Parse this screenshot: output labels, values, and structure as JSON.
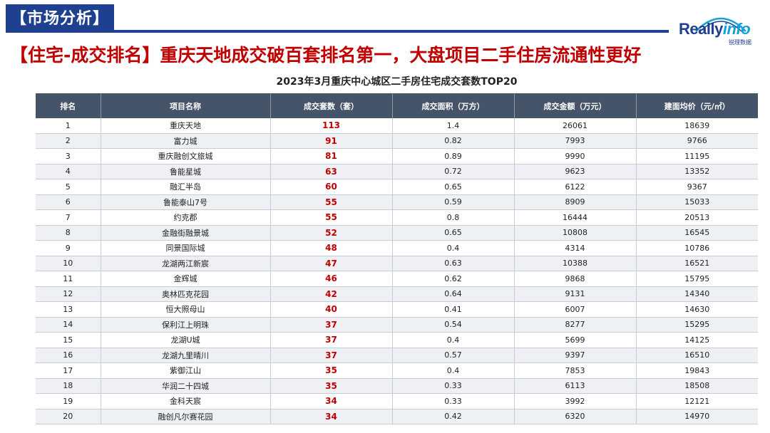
{
  "header": {
    "section_label": "【市场分析】",
    "logo_text_part1": "Really",
    "logo_text_part2": "info",
    "logo_subtitle": "锐理数据",
    "headline": "【住宅-成交排名】重庆天地成交破百套排名第一，大盘项目二手住房流通性更好"
  },
  "colors": {
    "brand_blue": "#1f3f8f",
    "accent_cyan": "#14a0d8",
    "headline_red": "#c00000",
    "table_header": "#46546a"
  },
  "table": {
    "title": "2023年3月重庆中心城区二手房住宅成交套数TOP20",
    "columns": [
      "排名",
      "项目名称",
      "成交套数（套）",
      "成交面积（万方）",
      "成交金额（万元）",
      "建面均价（元/㎡）"
    ],
    "rows": [
      {
        "rank": "1",
        "name": "重庆天地",
        "count": "113",
        "area": "1.4",
        "amount": "26061",
        "price": "18639"
      },
      {
        "rank": "2",
        "name": "富力城",
        "count": "91",
        "area": "0.82",
        "amount": "7993",
        "price": "9766"
      },
      {
        "rank": "3",
        "name": "重庆融创文旅城",
        "count": "81",
        "area": "0.89",
        "amount": "9990",
        "price": "11195"
      },
      {
        "rank": "4",
        "name": "鲁能星城",
        "count": "63",
        "area": "0.72",
        "amount": "9623",
        "price": "13352"
      },
      {
        "rank": "5",
        "name": "融汇半岛",
        "count": "60",
        "area": "0.65",
        "amount": "6122",
        "price": "9367"
      },
      {
        "rank": "6",
        "name": "鲁能泰山7号",
        "count": "55",
        "area": "0.59",
        "amount": "8909",
        "price": "15033"
      },
      {
        "rank": "7",
        "name": "约克郡",
        "count": "55",
        "area": "0.8",
        "amount": "16444",
        "price": "20513"
      },
      {
        "rank": "8",
        "name": "金融街融景城",
        "count": "52",
        "area": "0.65",
        "amount": "10808",
        "price": "16545"
      },
      {
        "rank": "9",
        "name": "同景国际城",
        "count": "48",
        "area": "0.4",
        "amount": "4314",
        "price": "10786"
      },
      {
        "rank": "10",
        "name": "龙湖两江新宸",
        "count": "47",
        "area": "0.63",
        "amount": "10388",
        "price": "16521"
      },
      {
        "rank": "11",
        "name": "金辉城",
        "count": "46",
        "area": "0.62",
        "amount": "9868",
        "price": "15795"
      },
      {
        "rank": "12",
        "name": "奥林匹克花园",
        "count": "42",
        "area": "0.64",
        "amount": "9131",
        "price": "14340"
      },
      {
        "rank": "13",
        "name": "恒大照母山",
        "count": "40",
        "area": "0.41",
        "amount": "6007",
        "price": "14630"
      },
      {
        "rank": "14",
        "name": "保利江上明珠",
        "count": "37",
        "area": "0.54",
        "amount": "8277",
        "price": "15295"
      },
      {
        "rank": "15",
        "name": "龙湖U城",
        "count": "37",
        "area": "0.4",
        "amount": "5699",
        "price": "14125"
      },
      {
        "rank": "16",
        "name": "龙湖九里晴川",
        "count": "37",
        "area": "0.57",
        "amount": "9397",
        "price": "16510"
      },
      {
        "rank": "17",
        "name": "紫御江山",
        "count": "35",
        "area": "0.4",
        "amount": "7853",
        "price": "19843"
      },
      {
        "rank": "18",
        "name": "华润二十四城",
        "count": "35",
        "area": "0.33",
        "amount": "6113",
        "price": "18508"
      },
      {
        "rank": "19",
        "name": "金科天宸",
        "count": "34",
        "area": "0.33",
        "amount": "3992",
        "price": "12121"
      },
      {
        "rank": "20",
        "name": "融创凡尔赛花园",
        "count": "34",
        "area": "0.42",
        "amount": "6320",
        "price": "14970"
      }
    ]
  }
}
